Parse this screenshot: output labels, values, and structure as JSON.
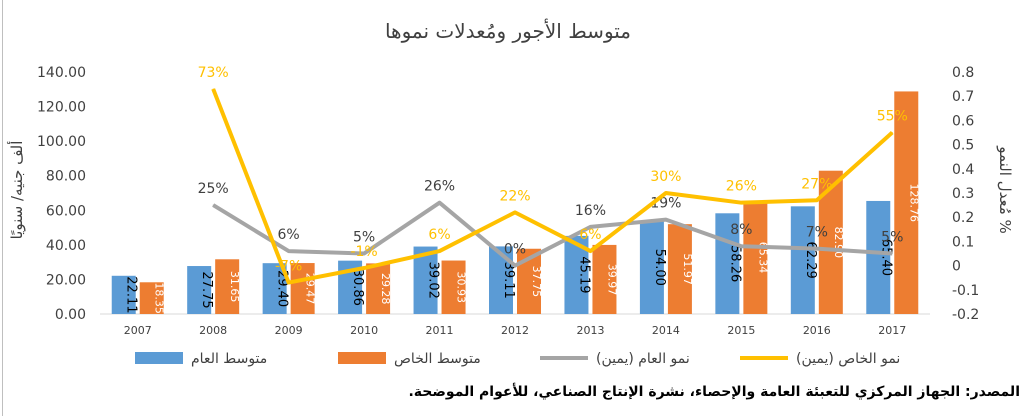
{
  "chart_data": {
    "type": "bar",
    "title": "متوسط الأجور ومُعدلات نموها",
    "ylabel": "ألف جنيه/ سنويًا",
    "y2label": "مُعدل النمو %",
    "ylim": [
      0,
      140
    ],
    "y2lim": [
      -0.2,
      0.8
    ],
    "grid": false,
    "legend_position": "bottom",
    "categories": [
      "2007",
      "2008",
      "2009",
      "2010",
      "2011",
      "2012",
      "2013",
      "2014",
      "2015",
      "2016",
      "2017"
    ],
    "y_ticks": [
      "0.00",
      "20.00",
      "40.00",
      "60.00",
      "80.00",
      "100.00",
      "120.00",
      "140.00"
    ],
    "y2_ticks": [
      "-0.2",
      "-0.1",
      "0",
      "0.1",
      "0.2",
      "0.3",
      "0.4",
      "0.5",
      "0.6",
      "0.7",
      "0.8"
    ],
    "series": [
      {
        "name": "متوسط العام",
        "kind": "bar",
        "axis": "left",
        "color": "#5b9bd5",
        "values": [
          22.11,
          27.75,
          29.4,
          30.86,
          39.02,
          39.11,
          45.19,
          54.0,
          58.26,
          62.29,
          65.4
        ],
        "labels": [
          "22.11",
          "27.75",
          "29.40",
          "30.86",
          "39.02",
          "39.11",
          "45.19",
          "54.00",
          "58.26",
          "62.29",
          "65.40"
        ]
      },
      {
        "name": "متوسط الخاص",
        "kind": "bar",
        "axis": "left",
        "color": "#ed7d31",
        "values": [
          18.35,
          31.65,
          29.47,
          29.28,
          30.93,
          37.75,
          39.97,
          51.97,
          65.34,
          82.9,
          128.76
        ],
        "labels": [
          "18.35",
          "31.65",
          "29.47",
          "29.28",
          "30.93",
          "37.75",
          "39.97",
          "51.97",
          "65.34",
          "82.90",
          "128.76"
        ]
      },
      {
        "name": "نمو العام (يمين)",
        "kind": "line",
        "axis": "right",
        "color": "#a5a5a5",
        "values": [
          null,
          0.25,
          0.06,
          0.05,
          0.26,
          0.0,
          0.16,
          0.19,
          0.08,
          0.07,
          0.05
        ],
        "labels": [
          "",
          "25%",
          "6%",
          "5%",
          "26%",
          "0%",
          "16%",
          "19%",
          "8%",
          "7%",
          "5%"
        ]
      },
      {
        "name": "نمو الخاص (يمين)",
        "kind": "line",
        "axis": "right",
        "color": "#ffc000",
        "values": [
          null,
          0.73,
          -0.07,
          -0.01,
          0.06,
          0.22,
          0.06,
          0.3,
          0.26,
          0.27,
          0.55
        ],
        "labels": [
          "",
          "73%",
          "-7%",
          "-1%",
          "6%",
          "22%",
          "6%",
          "30%",
          "26%",
          "27%",
          "55%"
        ]
      }
    ]
  },
  "footer": {
    "source": "المصدر: الجهاز المركزي للتعبئة العامة والإحصاء، نشرة الإنتاج الصناعي، للأعوام الموضحة."
  }
}
